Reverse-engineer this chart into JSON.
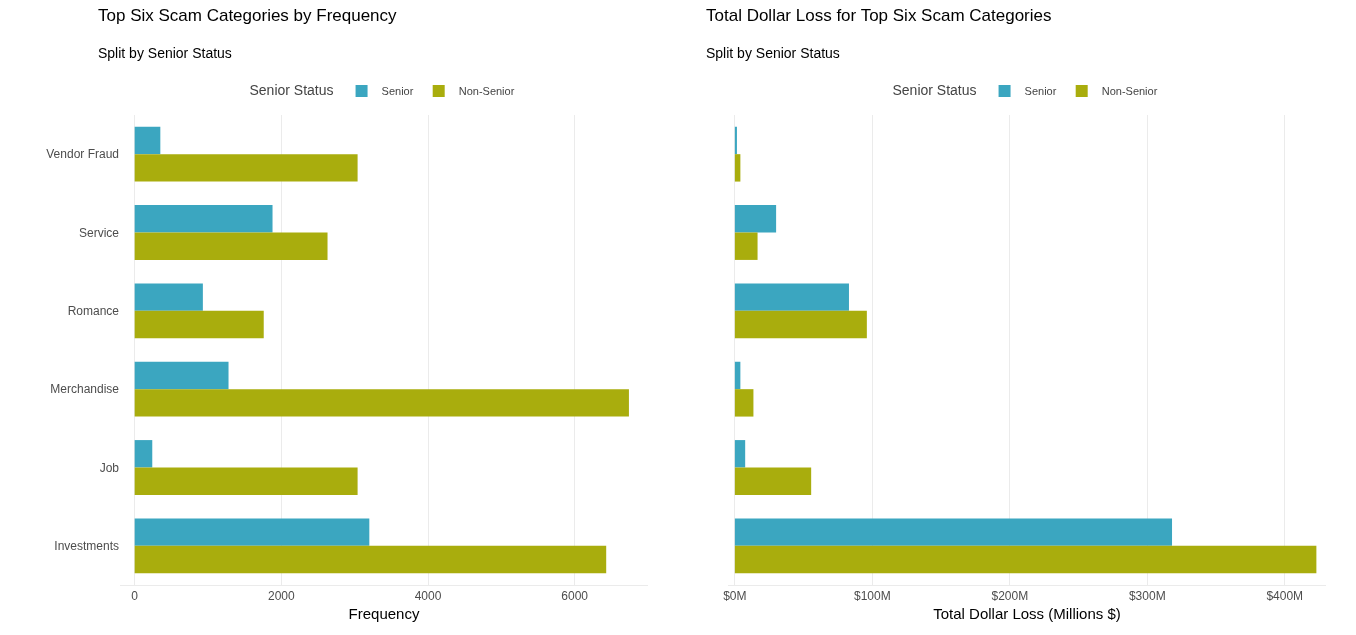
{
  "chart_data": [
    {
      "type": "bar",
      "orientation": "horizontal",
      "title": "Top Six Scam Categories by Frequency",
      "subtitle": "Split by Senior Status",
      "xlabel": "Frequency",
      "legend_title": "Senior Status",
      "legend": "top",
      "grid": "x",
      "categories": [
        "Vendor Fraud",
        "Service",
        "Romance",
        "Merchandise",
        "Job",
        "Investments"
      ],
      "series": [
        {
          "name": "Senior",
          "color": "#3ba6c0",
          "values": [
            350,
            1880,
            930,
            1280,
            240,
            3200
          ]
        },
        {
          "name": "Non-Senior",
          "color": "#a9ad0d",
          "values": [
            3040,
            2630,
            1760,
            6740,
            3040,
            6430
          ]
        }
      ],
      "xlim": [
        -200,
        7000
      ],
      "xticks": [
        0,
        2000,
        4000,
        6000
      ]
    },
    {
      "type": "bar",
      "orientation": "horizontal",
      "title": "Total Dollar Loss for Top Six Scam Categories",
      "subtitle": "Split by Senior Status",
      "xlabel": "Total Dollar Loss (Millions $)",
      "legend_title": "Senior Status",
      "legend": "top",
      "grid": "x",
      "categories": [
        null,
        null,
        null,
        null,
        null,
        null
      ],
      "series": [
        {
          "name": "Senior",
          "color": "#3ba6c0",
          "values": [
            1.5,
            30,
            83,
            4,
            7.5,
            318
          ]
        },
        {
          "name": "Non-Senior",
          "color": "#a9ad0d",
          "values": [
            4,
            16.5,
            96,
            13.5,
            55.5,
            423
          ]
        }
      ],
      "xlim": [
        -5,
        430
      ],
      "xticks": [
        {
          "value": 0,
          "label": "$0M"
        },
        {
          "value": 100,
          "label": "$100M"
        },
        {
          "value": 200,
          "label": "$200M"
        },
        {
          "value": 300,
          "label": "$300M"
        },
        {
          "value": 400,
          "label": "$400M"
        }
      ]
    }
  ]
}
